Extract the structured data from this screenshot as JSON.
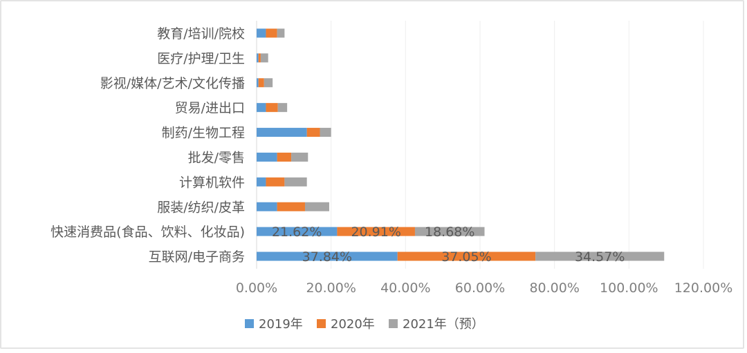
{
  "chart_data": {
    "type": "bar",
    "orientation": "horizontal",
    "stacked": true,
    "categories": [
      "互联网/电子商务",
      "快速消费品(食品、饮料、化妆品)",
      "服装/纺织/皮革",
      "计算机软件",
      "批发/零售",
      "制药/生物工程",
      "贸易/进出口",
      "影视/媒体/艺术/文化传播",
      "医疗/护理/卫生",
      "教育/培训/院校"
    ],
    "series": [
      {
        "name": "2019年",
        "color": "#5b9bd5",
        "values": [
          37.84,
          21.62,
          5.5,
          2.5,
          5.5,
          13.5,
          2.5,
          0.5,
          0.5,
          2.5
        ]
      },
      {
        "name": "2020年",
        "color": "#ed7d31",
        "values": [
          37.05,
          20.91,
          7.5,
          5.0,
          3.8,
          3.5,
          3.2,
          1.5,
          0.6,
          3.0
        ]
      },
      {
        "name": "2021年（预）",
        "color": "#a5a5a5",
        "values": [
          34.57,
          18.68,
          6.5,
          6.0,
          4.5,
          3.0,
          2.5,
          2.3,
          2.0,
          2.0
        ]
      }
    ],
    "data_labels": [
      [
        "37.84%",
        "37.05%",
        "34.57%"
      ],
      [
        "21.62%",
        "20.91%",
        "18.68%"
      ]
    ],
    "x_ticks": [
      "0.00%",
      "20.00%",
      "40.00%",
      "60.00%",
      "80.00%",
      "100.00%",
      "120.00%"
    ],
    "xlim": [
      0,
      120
    ],
    "grid": true,
    "legend_position": "bottom",
    "title": "",
    "xlabel": "",
    "ylabel": ""
  }
}
